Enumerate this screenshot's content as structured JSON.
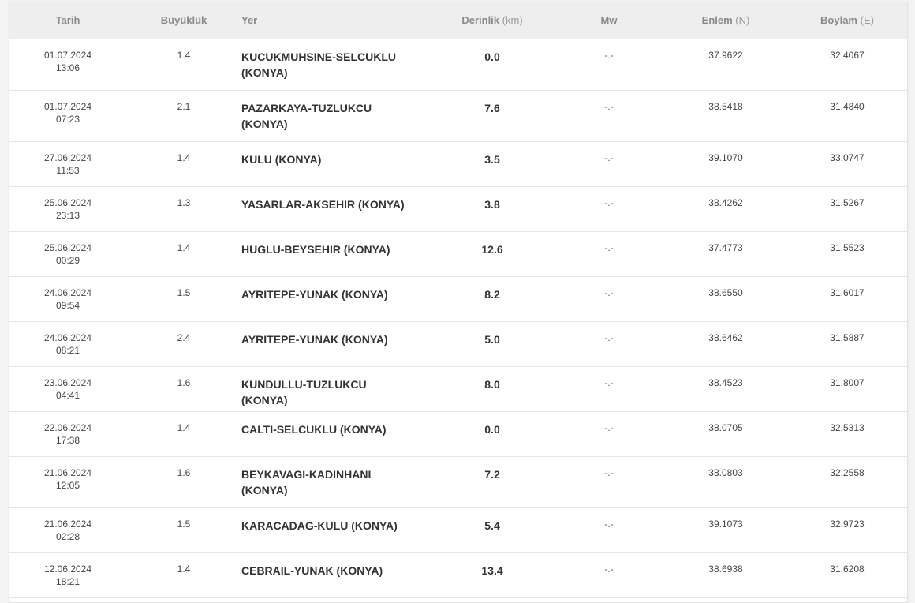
{
  "columns": {
    "date": "Tarih",
    "magnitude": "Büyüklük",
    "place": "Yer",
    "depth": "Derinlik",
    "depth_unit": "(km)",
    "mw": "Mw",
    "lat": "Enlem",
    "lat_unit": "(N)",
    "lon": "Boylam",
    "lon_unit": "(E)"
  },
  "rows": [
    {
      "date": "01.07.2024",
      "time": "13:06",
      "magnitude": "1.4",
      "place": "KUCUKMUHSINE-SELCUKLU (KONYA)",
      "depth": "0.0",
      "mw": "-.-",
      "lat": "37.9622",
      "lon": "32.4067"
    },
    {
      "date": "01.07.2024",
      "time": "07:23",
      "magnitude": "2.1",
      "place": "PAZARKAYA-TUZLUKCU (KONYA)",
      "depth": "7.6",
      "mw": "-.-",
      "lat": "38.5418",
      "lon": "31.4840"
    },
    {
      "date": "27.06.2024",
      "time": "11:53",
      "magnitude": "1.4",
      "place": "KULU (KONYA)",
      "depth": "3.5",
      "mw": "-.-",
      "lat": "39.1070",
      "lon": "33.0747"
    },
    {
      "date": "25.06.2024",
      "time": "23:13",
      "magnitude": "1.3",
      "place": "YASARLAR-AKSEHIR (KONYA)",
      "depth": "3.8",
      "mw": "-.-",
      "lat": "38.4262",
      "lon": "31.5267"
    },
    {
      "date": "25.06.2024",
      "time": "00:29",
      "magnitude": "1.4",
      "place": "HUGLU-BEYSEHIR (KONYA)",
      "depth": "12.6",
      "mw": "-.-",
      "lat": "37.4773",
      "lon": "31.5523"
    },
    {
      "date": "24.06.2024",
      "time": "09:54",
      "magnitude": "1.5",
      "place": "AYRITEPE-YUNAK (KONYA)",
      "depth": "8.2",
      "mw": "-.-",
      "lat": "38.6550",
      "lon": "31.6017"
    },
    {
      "date": "24.06.2024",
      "time": "08:21",
      "magnitude": "2.4",
      "place": "AYRITEPE-YUNAK (KONYA)",
      "depth": "5.0",
      "mw": "-.-",
      "lat": "38.6462",
      "lon": "31.5887"
    },
    {
      "date": "23.06.2024",
      "time": "04:41",
      "magnitude": "1.6",
      "place": "KUNDULLU-TUZLUKCU (KONYA)",
      "depth": "8.0",
      "mw": "-.-",
      "lat": "38.4523",
      "lon": "31.8007"
    },
    {
      "date": "22.06.2024",
      "time": "17:38",
      "magnitude": "1.4",
      "place": "CALTI-SELCUKLU (KONYA)",
      "depth": "0.0",
      "mw": "-.-",
      "lat": "38.0705",
      "lon": "32.5313"
    },
    {
      "date": "21.06.2024",
      "time": "12:05",
      "magnitude": "1.6",
      "place": "BEYKAVAGI-KADINHANI (KONYA)",
      "depth": "7.2",
      "mw": "-.-",
      "lat": "38.0803",
      "lon": "32.2558"
    },
    {
      "date": "21.06.2024",
      "time": "02:28",
      "magnitude": "1.5",
      "place": "KARACADAG-KULU (KONYA)",
      "depth": "5.4",
      "mw": "-.-",
      "lat": "39.1073",
      "lon": "32.9723"
    },
    {
      "date": "12.06.2024",
      "time": "18:21",
      "magnitude": "1.4",
      "place": "CEBRAIL-YUNAK (KONYA)",
      "depth": "13.4",
      "mw": "-.-",
      "lat": "38.6938",
      "lon": "31.6208"
    }
  ]
}
